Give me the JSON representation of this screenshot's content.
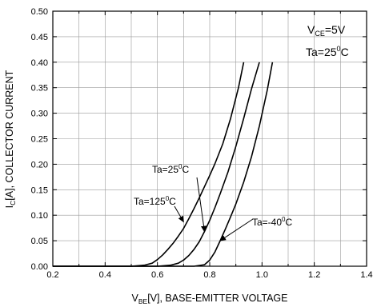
{
  "chart_data": {
    "type": "line",
    "title": "",
    "xlabel": {
      "pre": "V",
      "sub": "BE",
      "post": "[V], BASE-EMITTER VOLTAGE"
    },
    "ylabel": {
      "pre": "I",
      "sub": "C",
      "post": "[A], COLLECTOR CURRENT"
    },
    "xlim": [
      0.2,
      1.4
    ],
    "ylim": [
      0.0,
      0.5
    ],
    "x_ticks": [
      "0.2",
      "0.4",
      "0.6",
      "0.8",
      "1.0",
      "1.2",
      "1.4"
    ],
    "y_ticks": [
      "0.00",
      "0.05",
      "0.10",
      "0.15",
      "0.20",
      "0.25",
      "0.30",
      "0.35",
      "0.40",
      "0.45",
      "0.50"
    ],
    "grid": true,
    "conditions": {
      "vce": {
        "pre": "V",
        "sub": "CE",
        "post": "=5V"
      },
      "ta": {
        "pre": "Ta=25",
        "sup": "0",
        "post": "C"
      }
    },
    "series": [
      {
        "name": "Ta=125°C",
        "label": {
          "pre": "Ta=125",
          "sup": "0",
          "post": "C"
        },
        "x": [
          0.2,
          0.4,
          0.5,
          0.55,
          0.58,
          0.6,
          0.62,
          0.64,
          0.66,
          0.68,
          0.7,
          0.72,
          0.74,
          0.76,
          0.78,
          0.8,
          0.82,
          0.85,
          0.88,
          0.91,
          0.93
        ],
        "y": [
          0.0,
          0.0,
          0.0,
          0.002,
          0.006,
          0.013,
          0.022,
          0.033,
          0.045,
          0.059,
          0.074,
          0.093,
          0.113,
          0.134,
          0.156,
          0.178,
          0.201,
          0.24,
          0.29,
          0.35,
          0.4
        ]
      },
      {
        "name": "Ta=25°C",
        "label": {
          "pre": "Ta=25",
          "sup": "0",
          "post": "C"
        },
        "x": [
          0.2,
          0.6,
          0.65,
          0.68,
          0.7,
          0.72,
          0.74,
          0.76,
          0.78,
          0.8,
          0.82,
          0.84,
          0.87,
          0.9,
          0.93,
          0.96,
          0.99
        ],
        "y": [
          0.0,
          0.0,
          0.002,
          0.006,
          0.012,
          0.021,
          0.033,
          0.048,
          0.068,
          0.09,
          0.115,
          0.142,
          0.185,
          0.235,
          0.29,
          0.348,
          0.4
        ]
      },
      {
        "name": "Ta=-40°C",
        "label": {
          "pre": "Ta=-40",
          "sup": "0",
          "post": "C"
        },
        "x": [
          0.2,
          0.74,
          0.78,
          0.8,
          0.82,
          0.84,
          0.86,
          0.88,
          0.9,
          0.93,
          0.96,
          0.99,
          1.02,
          1.04
        ],
        "y": [
          0.0,
          0.0,
          0.003,
          0.012,
          0.028,
          0.05,
          0.073,
          0.097,
          0.122,
          0.165,
          0.215,
          0.275,
          0.345,
          0.4
        ]
      }
    ],
    "annotations": [
      {
        "series": "Ta=25°C",
        "point_to": [
          0.78,
          0.068
        ]
      },
      {
        "series": "Ta=125°C",
        "point_to": [
          0.7,
          0.087
        ]
      },
      {
        "series": "Ta=-40°C",
        "point_to": [
          0.84,
          0.05
        ]
      }
    ]
  }
}
